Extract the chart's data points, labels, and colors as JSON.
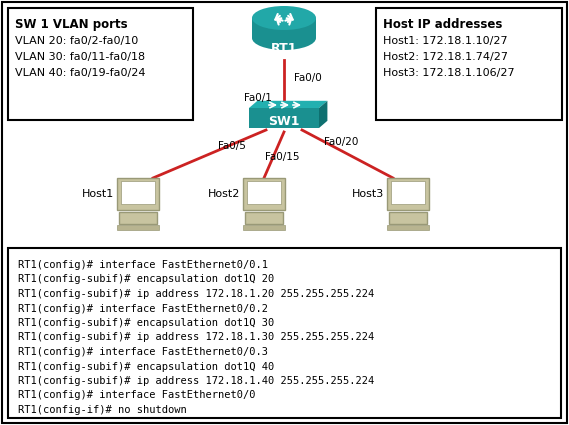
{
  "bg_color": "#ffffff",
  "border_color": "#000000",
  "router_color": "#1a9090",
  "switch_color": "#1a9090",
  "link_color": "#cc2222",
  "link_color_black": "#000000",
  "router_label": "RT1",
  "switch_label": "SW1",
  "host_labels": [
    "Host1",
    "Host2",
    "Host3"
  ],
  "vlan_box_title": "SW 1 VLAN ports",
  "vlan_lines": [
    "VLAN 20: fa0/2-fa0/10",
    "VLAN 30: fa0/11-fa0/18",
    "VLAN 40: fa0/19-fa0/24"
  ],
  "host_ip_title": "Host IP addresses",
  "host_ip_lines": [
    "Host1: 172.18.1.10/27",
    "Host2: 172.18.1.74/27",
    "Host3: 172.18.1.106/27"
  ],
  "link_label_fa00": "Fa0/0",
  "link_label_fa01": "Fa0/1",
  "link_label_fa05": "Fa0/5",
  "link_label_fa015": "Fa0/15",
  "link_label_fa020": "Fa0/20",
  "cmd_lines": [
    "RT1(config)# interface FastEthernet0/0.1",
    "RT1(config-subif)# encapsulation dot1Q 20",
    "RT1(config-subif)# ip address 172.18.1.20 255.255.255.224",
    "RT1(config)# interface FastEthernet0/0.2",
    "RT1(config-subif)# encapsulation dot1Q 30",
    "RT1(config-subif)# ip address 172.18.1.30 255.255.255.224",
    "RT1(config)# interface FastEthernet0/0.3",
    "RT1(config-subif)# encapsulation dot1Q 40",
    "RT1(config-subif)# ip address 172.18.1.40 255.255.255.224",
    "RT1(config)# interface FastEthernet0/0",
    "RT1(config-if)# no shutdown"
  ]
}
